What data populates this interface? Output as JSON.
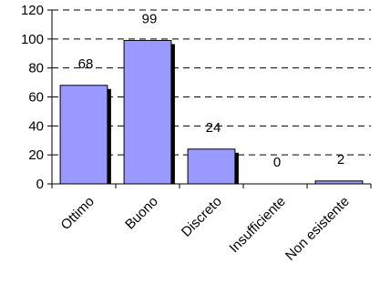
{
  "chart_data": {
    "type": "bar",
    "title": "",
    "xlabel": "",
    "ylabel": "",
    "categories": [
      "Ottimo",
      "Buono",
      "Discreto",
      "Insufficiente",
      "Non esistente"
    ],
    "values": [
      68,
      99,
      24,
      0,
      2
    ],
    "data_labels": [
      "68",
      "99",
      "24",
      "0",
      "2"
    ],
    "ylim": [
      0,
      120
    ],
    "yticks": [
      0,
      20,
      40,
      60,
      80,
      100,
      120
    ],
    "ytick_labels": [
      "0",
      "20",
      "40",
      "60",
      "80",
      "100",
      "120"
    ],
    "grid": "horizontal dashed",
    "legend": "none",
    "colors": {
      "bar_fill": "#9999FF",
      "bar_outline": "#000000",
      "bar_shadow": "#000000",
      "gridline": "#000000",
      "axis": "#000000",
      "background": "#FFFFFF"
    }
  }
}
